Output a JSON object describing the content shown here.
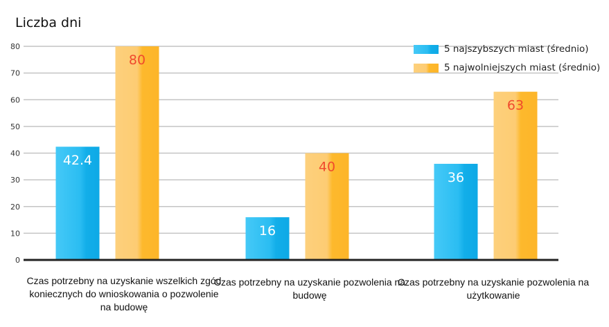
{
  "chart_data": {
    "type": "bar",
    "ylabel": "Liczba dni",
    "ylim": [
      0,
      80
    ],
    "yticks": [
      0,
      10,
      20,
      30,
      40,
      50,
      60,
      70,
      80
    ],
    "grid": true,
    "legend_position": "top-right",
    "categories": [
      "Czas potrzebny na uzyskanie wszelkich zgód koniecznych do wnioskowania o pozwolenie na budowę",
      "Czas potrzebny na uzyskanie pozwolenia na budowę",
      "Czas potrzebny na uzyskanie pozwolenia na użytkowanie"
    ],
    "series": [
      {
        "name": "5 najszybszych miast (średnio)",
        "values": [
          42.4,
          16,
          36
        ],
        "labels": [
          "42.4",
          "16",
          "36"
        ],
        "color": "#1db4ef",
        "label_color": "#ffffff"
      },
      {
        "name": "5 najwolniejszych miast (średnio)",
        "values": [
          80,
          40,
          63
        ],
        "labels": [
          "80",
          "40",
          "63"
        ],
        "color": "#fdb72a",
        "label_color": "#f04a2d"
      }
    ]
  }
}
